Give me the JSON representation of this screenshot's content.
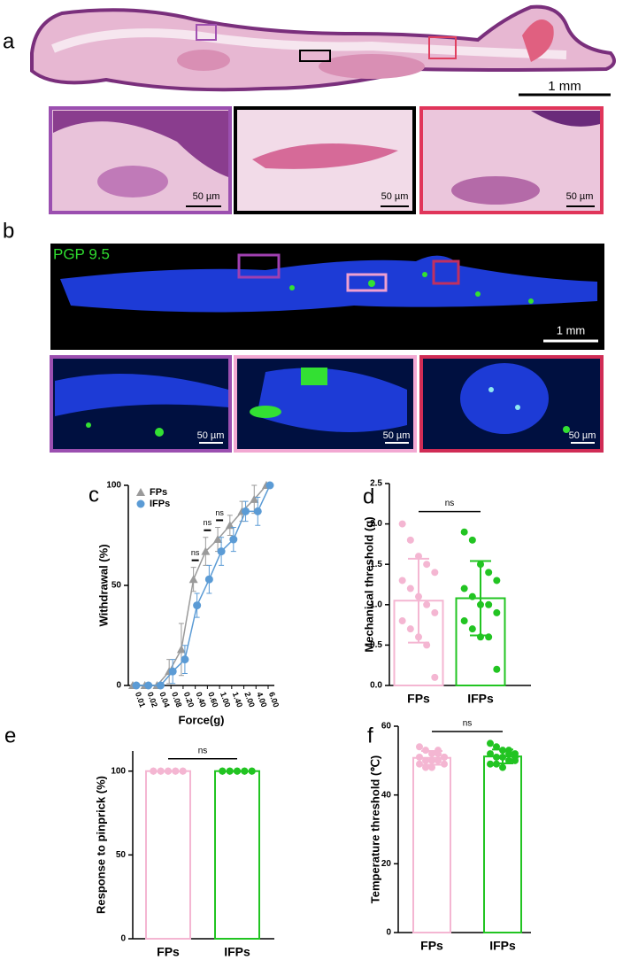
{
  "panel_a": {
    "label": "a",
    "scale_bar": "1 mm",
    "inset_scale_bar": "50 µm"
  },
  "panel_b": {
    "label": "b",
    "stain": "PGP 9.5",
    "scale_bar": "1 mm",
    "inset_scale_bar": "50 µm"
  },
  "chart_data": [
    {
      "type": "line",
      "label": "c",
      "xlabel": "Force(g)",
      "ylabel": "Withdrawal (%)",
      "categories": [
        "0.01",
        "0.02",
        "0.04",
        "0.08",
        "0.20",
        "0.40",
        "0.60",
        "1.00",
        "1.40",
        "2.00",
        "4.00",
        "6.00"
      ],
      "ylim": [
        0,
        100
      ],
      "yticks": [
        0,
        50,
        100
      ],
      "series": [
        {
          "name": "FPs",
          "color": "#9a9a9a",
          "marker": "triangle",
          "values": [
            0,
            0,
            0,
            7,
            18,
            53,
            67,
            73,
            80,
            87,
            93,
            100
          ],
          "errors": [
            0,
            0,
            0,
            6,
            13,
            6,
            7,
            6,
            5,
            5,
            7,
            0
          ]
        },
        {
          "name": "IFPs",
          "color": "#5b9bd5",
          "marker": "circle",
          "values": [
            0,
            0,
            0,
            7,
            13,
            40,
            53,
            67,
            73,
            87,
            87,
            100
          ],
          "errors": [
            0,
            0,
            0,
            6,
            7,
            6,
            7,
            7,
            6,
            5,
            7,
            0
          ]
        }
      ],
      "annotations": [
        {
          "text": "ns",
          "x": "0.40"
        },
        {
          "text": "ns",
          "x": "0.60"
        },
        {
          "text": "ns",
          "x": "1.00"
        }
      ]
    },
    {
      "type": "bar",
      "label": "d",
      "ylabel": "Mechanical threshold (g)",
      "annotation": "ns",
      "categories": [
        "FPs",
        "IFPs"
      ],
      "values": [
        1.05,
        1.08
      ],
      "errors": [
        0.52,
        0.46
      ],
      "colors": [
        "#f4b6d2",
        "#22c422"
      ],
      "points": [
        [
          2.0,
          1.8,
          1.6,
          1.5,
          1.4,
          1.3,
          1.2,
          1.1,
          1.0,
          0.9,
          0.8,
          0.7,
          0.6,
          0.5,
          0.1
        ],
        [
          1.9,
          1.8,
          1.5,
          1.4,
          1.3,
          1.2,
          1.1,
          1.0,
          1.0,
          0.9,
          0.8,
          0.7,
          0.6,
          0.6,
          0.2
        ]
      ],
      "ylim": [
        0,
        2.5
      ],
      "yticks": [
        {
          "value": 0,
          "label": "0.0"
        },
        0.5,
        {
          "value": 1,
          "label": "1.0"
        },
        1.5,
        {
          "value": 2,
          "label": "2.0"
        },
        2.5
      ]
    },
    {
      "type": "bar",
      "label": "e",
      "ylabel": "Response to pinprick (%)",
      "annotation": "ns",
      "categories": [
        "FPs",
        "IFPs"
      ],
      "values": [
        100,
        100
      ],
      "errors": [
        0,
        0
      ],
      "colors": [
        "#f4b6d2",
        "#22c422"
      ],
      "points": [
        [
          100,
          100,
          100,
          100,
          100,
          100,
          100,
          100,
          100,
          100,
          100,
          100,
          100,
          100,
          100
        ],
        [
          100,
          100,
          100,
          100,
          100,
          100,
          100,
          100,
          100,
          100,
          100,
          100,
          100,
          100,
          100
        ]
      ],
      "ylim": [
        0,
        112
      ],
      "yticks": [
        0,
        50,
        100
      ]
    },
    {
      "type": "bar",
      "label": "f",
      "ylabel": "Temperature threshold (℃)",
      "annotation": "ns",
      "categories": [
        "FPs",
        "IFPs"
      ],
      "values": [
        50.8,
        51.2
      ],
      "errors": [
        2,
        2
      ],
      "colors": [
        "#f4b6d2",
        "#22c422"
      ],
      "points": [
        [
          54,
          53,
          52,
          52,
          51,
          51,
          50,
          50,
          50,
          49,
          49,
          48,
          48,
          53,
          51
        ],
        [
          55,
          54,
          53,
          53,
          52,
          52,
          51,
          51,
          50,
          50,
          49,
          49,
          48,
          52,
          51
        ]
      ],
      "ylim": [
        0,
        60
      ],
      "yticks": [
        0,
        20,
        40,
        60
      ]
    }
  ]
}
